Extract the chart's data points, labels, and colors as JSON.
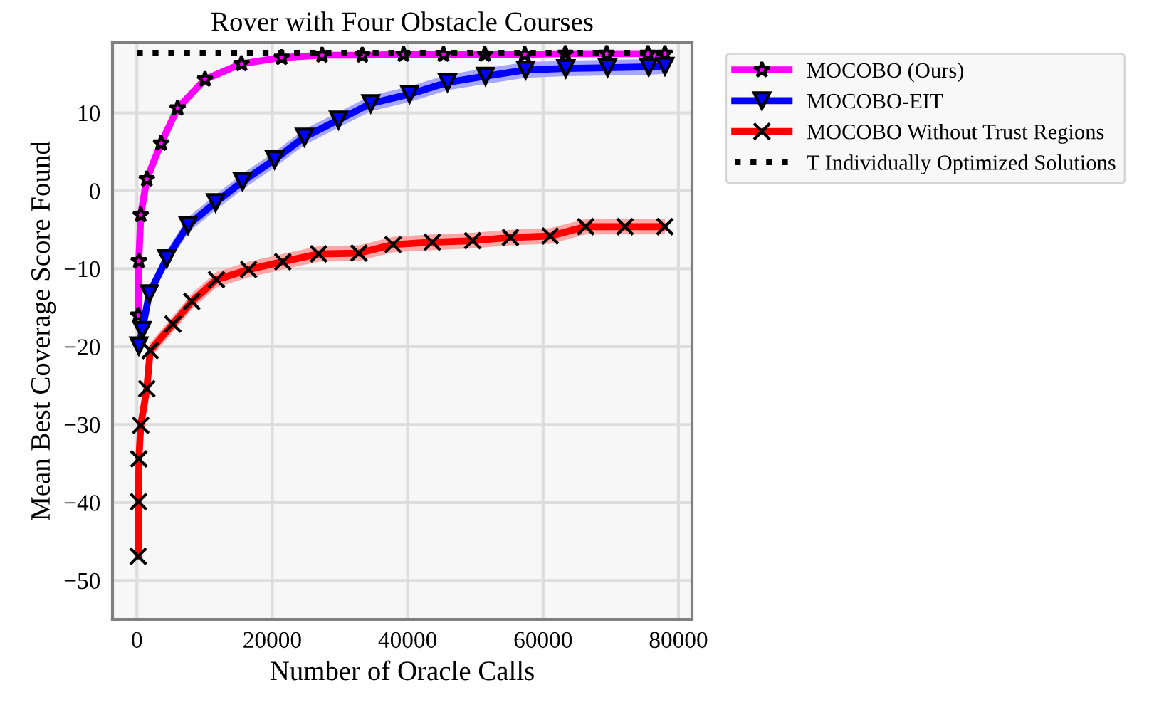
{
  "chart_data": {
    "type": "line",
    "title": "Rover with Four Obstacle Courses",
    "xlabel": "Number of Oracle Calls",
    "ylabel": "Mean Best Coverage Score Found",
    "xlim": [
      -3600,
      82000
    ],
    "xticks": [
      0,
      20000,
      40000,
      60000,
      80000
    ],
    "ylim": [
      -55,
      19
    ],
    "yticks": [
      -50,
      -40,
      -30,
      -20,
      -10,
      0,
      10
    ],
    "grid": true,
    "legend": "right",
    "series": [
      {
        "name": "MOCOBO (Ours)",
        "color": "#ff00ff",
        "marker": "star",
        "line_style": "solid",
        "x": [
          200,
          290,
          570,
          1470,
          3570,
          6020,
          10070,
          15460,
          21400,
          27360,
          33300,
          39400,
          45300,
          51400,
          57300,
          63300,
          69400,
          75500,
          78000
        ],
        "values": [
          -16.0,
          -9.0,
          -3.1,
          1.5,
          6.1,
          10.6,
          14.3,
          16.3,
          17.1,
          17.4,
          17.4,
          17.5,
          17.5,
          17.5,
          17.5,
          17.6,
          17.6,
          17.6,
          17.6
        ]
      },
      {
        "name": "MOCOBO-EIT",
        "color": "#0000ff",
        "marker": "triangle",
        "line_style": "solid",
        "x": [
          290,
          780,
          1830,
          4410,
          7550,
          11620,
          15610,
          20350,
          24760,
          29790,
          34550,
          40280,
          45880,
          51490,
          57420,
          63360,
          69530,
          75610,
          78000
        ],
        "values": [
          -19.9,
          -17.9,
          -13.2,
          -8.7,
          -4.4,
          -1.5,
          1.2,
          4.0,
          6.9,
          9.1,
          11.2,
          12.4,
          13.9,
          14.7,
          15.5,
          15.7,
          15.8,
          15.9,
          16.0
        ],
        "lower": [
          -20.9,
          -18.9,
          -14.2,
          -9.7,
          -5.4,
          -2.5,
          0.2,
          3.0,
          5.9,
          8.1,
          10.2,
          11.4,
          12.9,
          13.7,
          14.5,
          14.7,
          14.8,
          14.9,
          15.0
        ],
        "upper": [
          -18.9,
          -16.9,
          -12.2,
          -7.7,
          -3.4,
          -0.5,
          2.2,
          5.0,
          7.9,
          10.1,
          12.2,
          13.4,
          14.9,
          15.7,
          16.5,
          16.7,
          16.8,
          16.9,
          17.0
        ]
      },
      {
        "name": "MOCOBO Without Trust Regions",
        "color": "#ff0000",
        "marker": "cross",
        "line_style": "solid",
        "x": [
          200,
          250,
          300,
          570,
          1470,
          1970,
          5330,
          8120,
          11750,
          16510,
          21550,
          26850,
          32810,
          37850,
          43640,
          49600,
          55180,
          61050,
          66300,
          72110,
          78000
        ],
        "values": [
          -46.9,
          -39.9,
          -34.4,
          -30.1,
          -25.4,
          -20.5,
          -17.1,
          -14.2,
          -11.4,
          -10.1,
          -9.1,
          -8.1,
          -8.0,
          -6.9,
          -6.6,
          -6.4,
          -6.0,
          -5.8,
          -4.6,
          -4.6,
          -4.6
        ],
        "lower": [
          -47.9,
          -40.9,
          -35.4,
          -31.1,
          -26.4,
          -21.5,
          -18.1,
          -15.2,
          -12.4,
          -11.1,
          -10.1,
          -9.1,
          -9.0,
          -7.9,
          -7.6,
          -7.4,
          -7.0,
          -6.8,
          -5.6,
          -5.6,
          -5.6
        ],
        "upper": [
          -45.9,
          -38.9,
          -33.4,
          -29.1,
          -24.4,
          -19.5,
          -16.1,
          -13.2,
          -10.4,
          -9.1,
          -8.1,
          -7.1,
          -7.0,
          -5.9,
          -5.6,
          -5.4,
          -5.0,
          -4.8,
          -3.6,
          -3.6,
          -3.6
        ]
      },
      {
        "name": "T Individually Optimized Solutions",
        "color": "#000000",
        "marker": "none",
        "line_style": "dotted",
        "x": [
          0,
          78000
        ],
        "values": [
          17.7,
          17.7
        ]
      }
    ]
  }
}
